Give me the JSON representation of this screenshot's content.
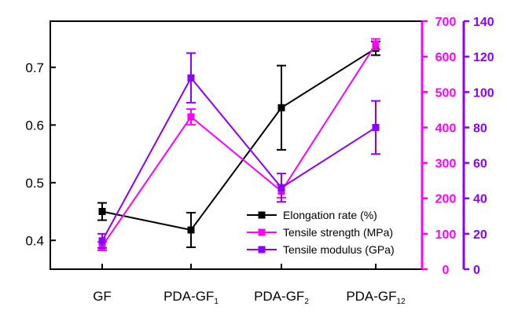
{
  "chart_data": {
    "type": "line",
    "categories": [
      "GF",
      "PDA-GF1",
      "PDA-GF2",
      "PDA-GF12"
    ],
    "category_labels": [
      {
        "base": "GF",
        "sub": ""
      },
      {
        "base": "PDA-GF",
        "sub": "1"
      },
      {
        "base": "PDA-GF",
        "sub": "2"
      },
      {
        "base": "PDA-GF",
        "sub": "12"
      }
    ],
    "xlabel": "",
    "axes": {
      "left": {
        "ylim": [
          0.35,
          0.78
        ],
        "ticks": [
          "0.4",
          "0.5",
          "0.6",
          "0.7"
        ],
        "color": "#000000"
      },
      "right1": {
        "ylim": [
          0,
          700
        ],
        "ticks": [
          "0",
          "100",
          "200",
          "300",
          "400",
          "500",
          "600",
          "700"
        ],
        "color": "#ff00ff"
      },
      "right2": {
        "ylim": [
          0,
          140
        ],
        "ticks": [
          "0",
          "20",
          "40",
          "60",
          "80",
          "100",
          "120",
          "140"
        ],
        "color": "#8b00ff"
      }
    },
    "series": [
      {
        "name": "Elongation rate (%)",
        "axis": "left",
        "color": "#000000",
        "values": [
          0.45,
          0.418,
          0.63,
          0.733
        ],
        "errors": [
          0.015,
          0.03,
          0.073,
          0.012
        ]
      },
      {
        "name": "Tensile strength (MPa)",
        "axis": "right1",
        "color": "#ff00ff",
        "values": [
          65,
          430,
          220,
          635
        ],
        "errors": [
          12,
          22,
          18,
          15
        ]
      },
      {
        "name": "Tensile modulus (GPa)",
        "axis": "right2",
        "color": "#8b00ff",
        "values": [
          16,
          108,
          46,
          80
        ],
        "errors": [
          4,
          14,
          8,
          15
        ]
      }
    ],
    "legend_position": "bottom-right",
    "grid": false
  }
}
